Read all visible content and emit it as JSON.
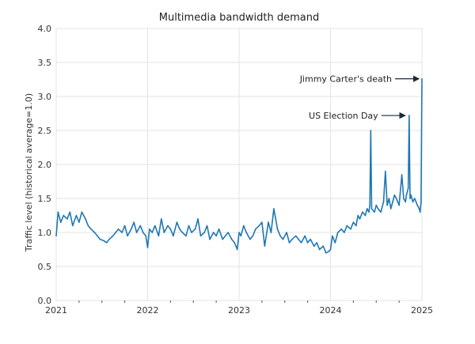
{
  "chart_data": {
    "type": "line",
    "title": "Multimedia bandwidth demand",
    "xlabel": "",
    "ylabel": "Traffic level (historical average=1.0)",
    "xlim": [
      2021.0,
      2025.0
    ],
    "ylim": [
      0.0,
      4.0
    ],
    "x_ticks": [
      "2021",
      "2022",
      "2023",
      "2024",
      "2025"
    ],
    "y_ticks": [
      "0.0",
      "0.5",
      "1.0",
      "1.5",
      "2.0",
      "2.5",
      "3.0",
      "3.5",
      "4.0"
    ],
    "grid": true,
    "series": [
      {
        "color": "#1f77b4",
        "x": [
          2021.0,
          2021.02,
          2021.05,
          2021.08,
          2021.12,
          2021.15,
          2021.18,
          2021.22,
          2021.25,
          2021.28,
          2021.32,
          2021.35,
          2021.38,
          2021.42,
          2021.45,
          2021.48,
          2021.52,
          2021.55,
          2021.58,
          2021.62,
          2021.65,
          2021.68,
          2021.72,
          2021.75,
          2021.78,
          2021.82,
          2021.85,
          2021.88,
          2021.92,
          2021.95,
          2021.98,
          2022.0,
          2022.02,
          2022.05,
          2022.08,
          2022.12,
          2022.15,
          2022.18,
          2022.22,
          2022.25,
          2022.28,
          2022.32,
          2022.35,
          2022.38,
          2022.42,
          2022.45,
          2022.48,
          2022.52,
          2022.55,
          2022.58,
          2022.62,
          2022.65,
          2022.68,
          2022.72,
          2022.75,
          2022.78,
          2022.82,
          2022.85,
          2022.88,
          2022.92,
          2022.95,
          2022.98,
          2023.0,
          2023.02,
          2023.05,
          2023.08,
          2023.12,
          2023.15,
          2023.18,
          2023.22,
          2023.25,
          2023.28,
          2023.32,
          2023.35,
          2023.38,
          2023.42,
          2023.45,
          2023.48,
          2023.52,
          2023.55,
          2023.58,
          2023.62,
          2023.65,
          2023.68,
          2023.72,
          2023.75,
          2023.78,
          2023.82,
          2023.85,
          2023.88,
          2023.92,
          2023.95,
          2023.98,
          2024.0,
          2024.02,
          2024.05,
          2024.08,
          2024.12,
          2024.15,
          2024.18,
          2024.22,
          2024.25,
          2024.28,
          2024.3,
          2024.32,
          2024.35,
          2024.38,
          2024.4,
          2024.42,
          2024.43,
          2024.44,
          2024.45,
          2024.48,
          2024.5,
          2024.52,
          2024.55,
          2024.58,
          2024.6,
          2024.62,
          2024.64,
          2024.66,
          2024.68,
          2024.7,
          2024.72,
          2024.75,
          2024.78,
          2024.8,
          2024.82,
          2024.83,
          2024.84,
          2024.85,
          2024.86,
          2024.87,
          2024.88,
          2024.9,
          2024.92,
          2024.95,
          2024.97,
          2024.98,
          2024.99,
          2025.0
        ],
        "y": [
          0.95,
          1.3,
          1.15,
          1.25,
          1.2,
          1.3,
          1.1,
          1.25,
          1.15,
          1.3,
          1.2,
          1.1,
          1.05,
          1.0,
          0.95,
          0.9,
          0.88,
          0.85,
          0.9,
          0.95,
          1.0,
          1.05,
          1.0,
          1.1,
          0.95,
          1.05,
          1.15,
          1.0,
          1.1,
          1.0,
          0.95,
          0.78,
          1.05,
          1.0,
          1.1,
          0.95,
          1.2,
          1.0,
          1.1,
          1.05,
          0.95,
          1.15,
          1.05,
          1.0,
          0.95,
          1.1,
          1.0,
          1.05,
          1.2,
          0.95,
          1.0,
          1.1,
          0.9,
          1.0,
          0.95,
          1.05,
          0.9,
          0.95,
          1.0,
          0.9,
          0.85,
          0.75,
          1.0,
          0.95,
          1.1,
          1.0,
          0.9,
          0.95,
          1.05,
          1.1,
          1.15,
          0.8,
          1.15,
          1.0,
          1.35,
          1.05,
          0.95,
          0.9,
          1.0,
          0.85,
          0.9,
          0.95,
          0.9,
          0.85,
          0.95,
          0.85,
          0.9,
          0.8,
          0.85,
          0.75,
          0.8,
          0.7,
          0.72,
          0.75,
          0.95,
          0.85,
          1.0,
          1.05,
          1.0,
          1.1,
          1.05,
          1.15,
          1.1,
          1.25,
          1.2,
          1.3,
          1.25,
          1.35,
          1.3,
          1.4,
          2.5,
          1.35,
          1.3,
          1.4,
          1.35,
          1.3,
          1.45,
          1.9,
          1.4,
          1.5,
          1.35,
          1.45,
          1.55,
          1.5,
          1.4,
          1.85,
          1.5,
          1.45,
          1.55,
          1.6,
          1.65,
          2.72,
          1.5,
          1.55,
          1.45,
          1.5,
          1.4,
          1.35,
          1.3,
          1.45,
          3.26
        ]
      }
    ],
    "annotations": [
      {
        "text": "Jimmy Carter's death",
        "x": 2025.0,
        "y": 3.26
      },
      {
        "text": "US Election Day",
        "x": 2024.85,
        "y": 2.72
      }
    ]
  }
}
